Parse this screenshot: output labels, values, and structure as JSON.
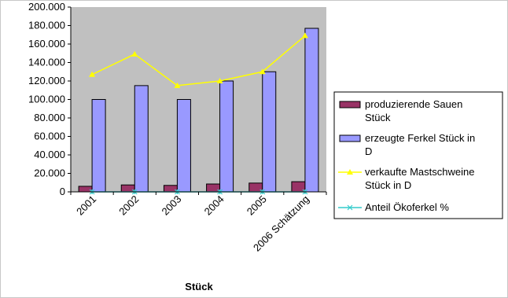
{
  "chart_data": {
    "type": "bar",
    "categories": [
      "2001",
      "2002",
      "2003",
      "2004",
      "2005",
      "2006 Schätzung"
    ],
    "series": [
      {
        "name": "produzierende Sauen Stück",
        "kind": "bar",
        "values": [
          6000,
          7500,
          7000,
          8500,
          9500,
          11000
        ]
      },
      {
        "name": "erzeugte Ferkel Stück in D",
        "kind": "bar",
        "values": [
          100000,
          115000,
          100000,
          120000,
          130000,
          177000
        ]
      },
      {
        "name": "verkaufte Mastschweine Stück in D",
        "kind": "line",
        "values": [
          127000,
          149000,
          115000,
          120000,
          130000,
          169000
        ]
      },
      {
        "name": "Anteil Ökoferkel %",
        "kind": "line",
        "values": [
          0,
          0,
          0,
          0,
          0,
          0
        ]
      }
    ],
    "xlabel": "Stück",
    "ylim": [
      0,
      200000
    ],
    "yticks": [
      "0",
      "20.000",
      "40.000",
      "60.000",
      "80.000",
      "100.000",
      "120.000",
      "140.000",
      "160.000",
      "180.000",
      "200.000"
    ],
    "grid": false,
    "legend": "right",
    "colors": {
      "plot_background": "#c0c0c0",
      "sauen_bar": "#993366",
      "ferkel_bar": "#9999ff",
      "mastschweine_line": "#ffff00",
      "oeko_line": "#33cccc"
    }
  },
  "legend_items": [
    {
      "lines": [
        "produzierende Sauen",
        "Stück"
      ]
    },
    {
      "lines": [
        "erzeugte Ferkel Stück in",
        "D"
      ]
    },
    {
      "lines": [
        "verkaufte Mastschweine",
        "Stück in D"
      ]
    },
    {
      "lines": [
        "Anteil Ökoferkel %"
      ]
    }
  ]
}
